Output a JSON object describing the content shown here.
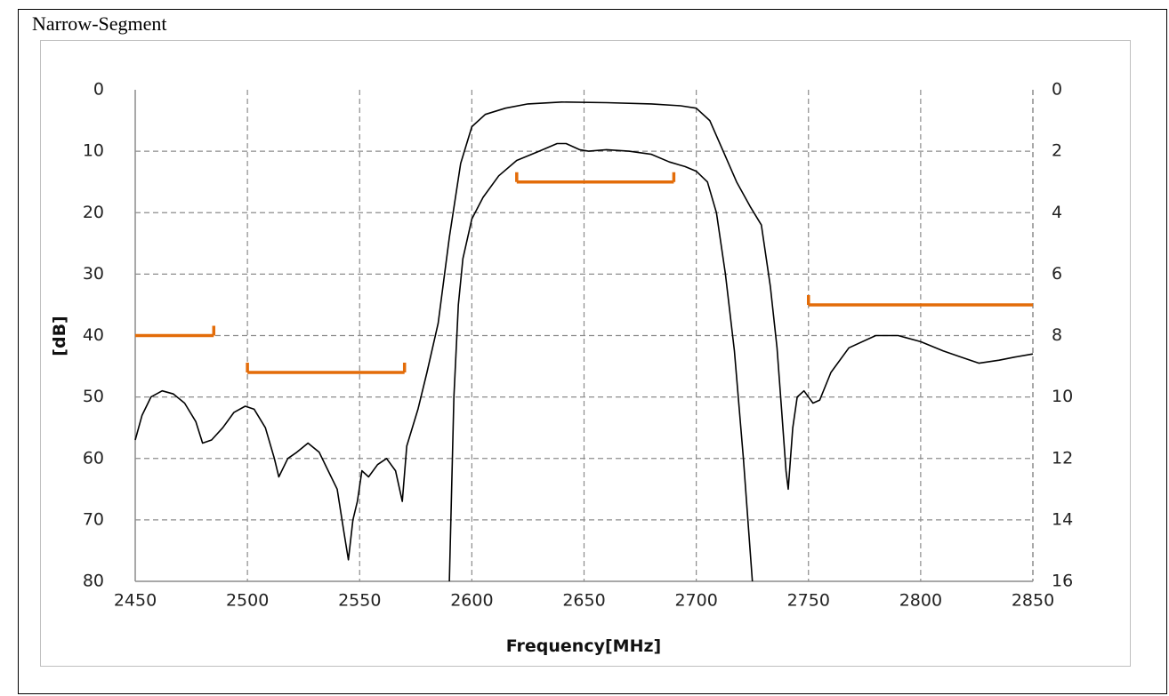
{
  "caption": "Narrow-Segment",
  "colors": {
    "curve": "#000000",
    "mask": "#e36c09",
    "grid": "#8c8c8c"
  },
  "chart_data": {
    "type": "line",
    "title": "",
    "xlabel": "Frequency[MHz]",
    "ylabel": "[dB]",
    "xlim": [
      2450,
      2850
    ],
    "ylim_left": [
      0,
      80
    ],
    "ylim_right": [
      0,
      16
    ],
    "y_inverted": true,
    "grid": true,
    "x_ticks": [
      "2450",
      "2500",
      "2550",
      "2600",
      "2650",
      "2700",
      "2750",
      "2800",
      "2850"
    ],
    "y_ticks_left": [
      "0",
      "10",
      "20",
      "30",
      "40",
      "50",
      "60",
      "70",
      "80"
    ],
    "y_ticks_right": [
      "0",
      "2",
      "4",
      "6",
      "8",
      "10",
      "12",
      "14",
      "16"
    ],
    "series": [
      {
        "axis": "left",
        "points": [
          [
            2450,
            57
          ],
          [
            2453,
            53
          ],
          [
            2457,
            50
          ],
          [
            2462,
            49
          ],
          [
            2467,
            49.5
          ],
          [
            2472,
            51
          ],
          [
            2477,
            54
          ],
          [
            2480,
            57.5
          ],
          [
            2484,
            57
          ],
          [
            2489,
            55
          ],
          [
            2494,
            52.5
          ],
          [
            2499,
            51.5
          ],
          [
            2503,
            52
          ],
          [
            2508,
            55
          ],
          [
            2512,
            60
          ],
          [
            2514,
            63
          ],
          [
            2518,
            60
          ],
          [
            2522,
            59
          ],
          [
            2527,
            57.5
          ],
          [
            2532,
            59
          ],
          [
            2536,
            62
          ],
          [
            2540,
            65
          ],
          [
            2543,
            72
          ],
          [
            2545,
            76.5
          ],
          [
            2547,
            70
          ],
          [
            2549,
            67
          ],
          [
            2551,
            62
          ],
          [
            2554,
            63
          ],
          [
            2558,
            61
          ],
          [
            2562,
            60
          ],
          [
            2566,
            62
          ],
          [
            2569,
            67
          ],
          [
            2571,
            58
          ],
          [
            2576,
            52
          ],
          [
            2580,
            46
          ],
          [
            2585,
            38
          ],
          [
            2590,
            24
          ],
          [
            2595,
            12
          ],
          [
            2600,
            6
          ],
          [
            2606,
            4
          ],
          [
            2615,
            3
          ],
          [
            2625,
            2.3
          ],
          [
            2640,
            2
          ],
          [
            2660,
            2.1
          ],
          [
            2680,
            2.3
          ],
          [
            2693,
            2.6
          ],
          [
            2700,
            3
          ],
          [
            2706,
            5
          ],
          [
            2712,
            10
          ],
          [
            2718,
            15
          ],
          [
            2724,
            19
          ],
          [
            2729,
            22
          ],
          [
            2733,
            32
          ],
          [
            2736,
            42
          ],
          [
            2738,
            52
          ],
          [
            2740,
            62
          ],
          [
            2741,
            65
          ],
          [
            2743,
            55
          ],
          [
            2745,
            50
          ],
          [
            2748,
            49
          ],
          [
            2752,
            51
          ],
          [
            2755,
            50.5
          ],
          [
            2760,
            46
          ],
          [
            2768,
            42
          ],
          [
            2780,
            40
          ],
          [
            2790,
            40
          ],
          [
            2800,
            41
          ],
          [
            2810,
            42.5
          ],
          [
            2818,
            43.5
          ],
          [
            2826,
            44.5
          ],
          [
            2835,
            44
          ],
          [
            2842,
            43.5
          ],
          [
            2850,
            43
          ]
        ]
      },
      {
        "axis": "right",
        "points": [
          [
            2590,
            16
          ],
          [
            2592,
            10
          ],
          [
            2594,
            7
          ],
          [
            2596,
            5.5
          ],
          [
            2600,
            4.2
          ],
          [
            2605,
            3.5
          ],
          [
            2612,
            2.8
          ],
          [
            2620,
            2.3
          ],
          [
            2630,
            2
          ],
          [
            2638,
            1.75
          ],
          [
            2642,
            1.75
          ],
          [
            2648,
            1.95
          ],
          [
            2652,
            2
          ],
          [
            2660,
            1.95
          ],
          [
            2670,
            2
          ],
          [
            2680,
            2.1
          ],
          [
            2688,
            2.35
          ],
          [
            2695,
            2.5
          ],
          [
            2700,
            2.65
          ],
          [
            2705,
            3
          ],
          [
            2709,
            4
          ],
          [
            2713,
            6
          ],
          [
            2717,
            8.5
          ],
          [
            2721,
            12
          ],
          [
            2725,
            16
          ]
        ]
      }
    ],
    "mask_segments": [
      {
        "x1": 2450,
        "x2": 2485,
        "y": 40,
        "tick_end": "right"
      },
      {
        "x1": 2500,
        "x2": 2570,
        "y": 46,
        "tick_end": "both"
      },
      {
        "x1": 2620,
        "x2": 2690,
        "y": 15,
        "tick_end": "both"
      },
      {
        "x1": 2750,
        "x2": 2850,
        "y": 35,
        "tick_end": "left"
      }
    ]
  }
}
